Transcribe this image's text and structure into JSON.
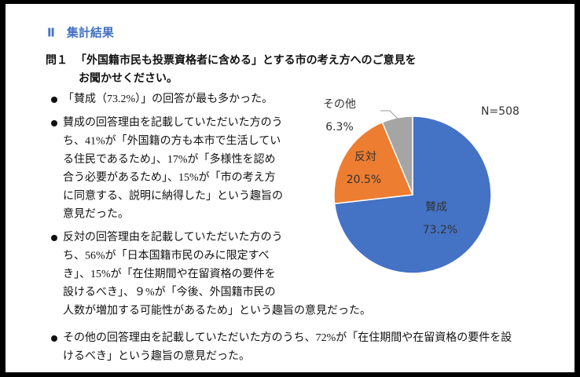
{
  "section_title": "Ⅱ　集計結果",
  "question": {
    "number": "問１",
    "lines": [
      "「外国籍市民も投票資格者に含める」とする市の考え方へのご意見を",
      "お聞かせください。"
    ]
  },
  "bullets": [
    {
      "lines": [
        "「賛成（73.2%）」の回答が最も多かった。"
      ]
    },
    {
      "lines": [
        "賛成の回答理由を記載していただいた方のう",
        "ち、41%が「外国籍の方も本市で生活してい",
        "る住民であるため」、17%が「多様性を認め",
        "合う必要があるため」、15%が「市の考え方",
        "に同意する、説明に納得した」という趣旨の",
        "意見だった。"
      ]
    },
    {
      "lines": [
        "反対の回答理由を記載していただいた方のう",
        "ち、56%が「日本国籍市民のみに限定すべ",
        "き」、15%が「在住期間や在留資格の要件を",
        "設けるべき」、９%が「今後、外国籍市民の",
        "人数が増加する可能性があるため」という趣旨の意見だった。"
      ]
    },
    {
      "lines": [
        "その他の回答理由を記載していただいた方のうち、72%が「在住期間や在留資格の要件を設",
        "けるべき」という趣旨の意見だった。"
      ]
    }
  ],
  "chart_data": {
    "type": "pie",
    "annotation": "N=508",
    "categories": [
      "賛成",
      "反対",
      "その他"
    ],
    "values": [
      73.2,
      20.5,
      6.3
    ],
    "value_labels": [
      "73.2%",
      "20.5%",
      "6.3%"
    ],
    "colors": [
      "#4472c4",
      "#ed7d31",
      "#a5a5a5"
    ]
  }
}
